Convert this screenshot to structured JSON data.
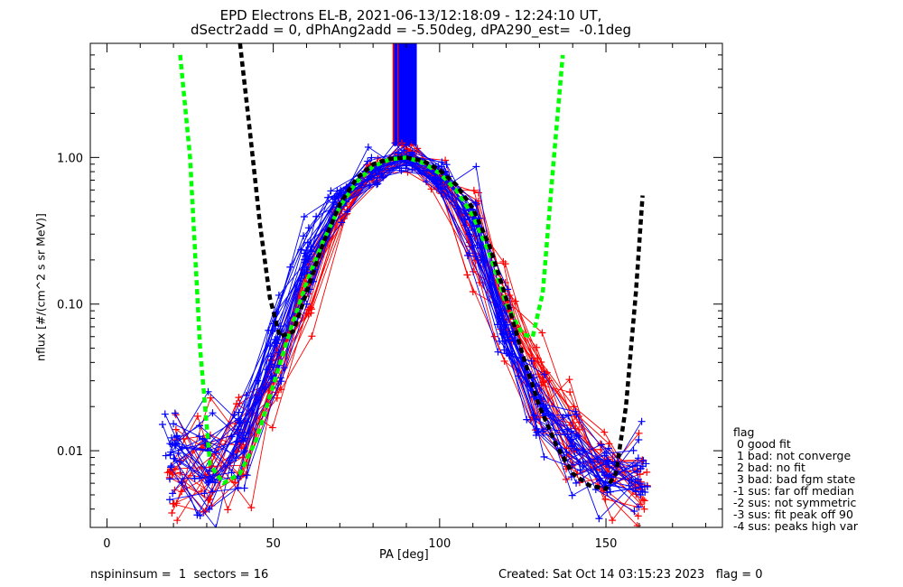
{
  "chart_data": {
    "type": "line",
    "title_line1": "EPD Electrons EL-B, 2021-06-13/12:18:09 - 12:24:10 UT,",
    "title_line2": "dSectr2add = 0, dPhAng2add = -5.50deg, dPA290_est=  -0.1deg",
    "xlabel": "PA [deg]",
    "ylabel": "nflux [#/(cm^2 s sr MeV)]",
    "xlim": [
      -5,
      185
    ],
    "ylim": [
      0.003,
      6
    ],
    "yscale": "log",
    "x_ticks": [
      "0",
      "50",
      "100",
      "150"
    ],
    "y_ticks": [
      "0.01",
      "0.10",
      "1.00"
    ],
    "series": [
      {
        "color": "#ff0000",
        "style": "many thin lines with plus markers",
        "x": [
          20,
          30,
          40,
          50,
          60,
          70,
          80,
          90,
          100,
          110,
          120,
          130,
          140,
          150,
          160
        ],
        "y": [
          0.007,
          0.008,
          0.01,
          0.03,
          0.12,
          0.45,
          0.85,
          1.0,
          0.7,
          0.3,
          0.08,
          0.025,
          0.012,
          0.007,
          0.006
        ]
      },
      {
        "color": "#0000ff",
        "style": "many thin lines with plus markers",
        "x": [
          20,
          30,
          40,
          50,
          60,
          70,
          80,
          90,
          100,
          110,
          120,
          130,
          140,
          150,
          160
        ],
        "y": [
          0.008,
          0.008,
          0.012,
          0.05,
          0.2,
          0.5,
          0.8,
          1.0,
          0.75,
          0.35,
          0.07,
          0.02,
          0.01,
          0.007,
          0.006
        ]
      },
      {
        "color": "#00ff00",
        "style": "dashed fit",
        "x": [
          22,
          25,
          28,
          31,
          35,
          40,
          45,
          50,
          55,
          60,
          65,
          70,
          75,
          80,
          85,
          90,
          95,
          100,
          105,
          110,
          115,
          120,
          125,
          128,
          131,
          134,
          137
        ],
        "y": [
          5.0,
          1.0,
          0.05,
          0.008,
          0.006,
          0.007,
          0.012,
          0.028,
          0.065,
          0.14,
          0.27,
          0.46,
          0.68,
          0.87,
          0.97,
          1.0,
          0.92,
          0.78,
          0.6,
          0.4,
          0.22,
          0.1,
          0.062,
          0.06,
          0.12,
          0.8,
          5.0
        ]
      },
      {
        "color": "#000000",
        "style": "dashed fit",
        "x": [
          40,
          43,
          46,
          49,
          52,
          56,
          60,
          65,
          70,
          75,
          80,
          85,
          90,
          95,
          100,
          105,
          110,
          115,
          120,
          125,
          130,
          135,
          140,
          145,
          150,
          153,
          156,
          159,
          161
        ],
        "y": [
          6.0,
          1.5,
          0.35,
          0.11,
          0.06,
          0.065,
          0.12,
          0.26,
          0.48,
          0.72,
          0.9,
          0.98,
          1.0,
          0.95,
          0.82,
          0.65,
          0.45,
          0.25,
          0.11,
          0.045,
          0.02,
          0.011,
          0.007,
          0.0058,
          0.0055,
          0.007,
          0.02,
          0.12,
          0.55
        ]
      }
    ],
    "beam_region": {
      "x_range": [
        86,
        93
      ],
      "y_from": 1.2,
      "colors": [
        "#ff0000",
        "#0000ff"
      ]
    },
    "legend": {
      "position": "right",
      "items": [
        "flag",
        " 0 good fit",
        " 1 bad: not converge",
        " 2 bad: no fit",
        " 3 bad: bad fgm state",
        "-1 sus: far off median",
        "-2 sus: not symmetric",
        "-3 sus: fit peak off 90",
        "-4 sus: peaks high var"
      ]
    },
    "footer": {
      "left": "nspininsum =  1  sectors = 16",
      "right": "Created: Sat Oct 14 03:15:23 2023   flag = 0"
    }
  }
}
